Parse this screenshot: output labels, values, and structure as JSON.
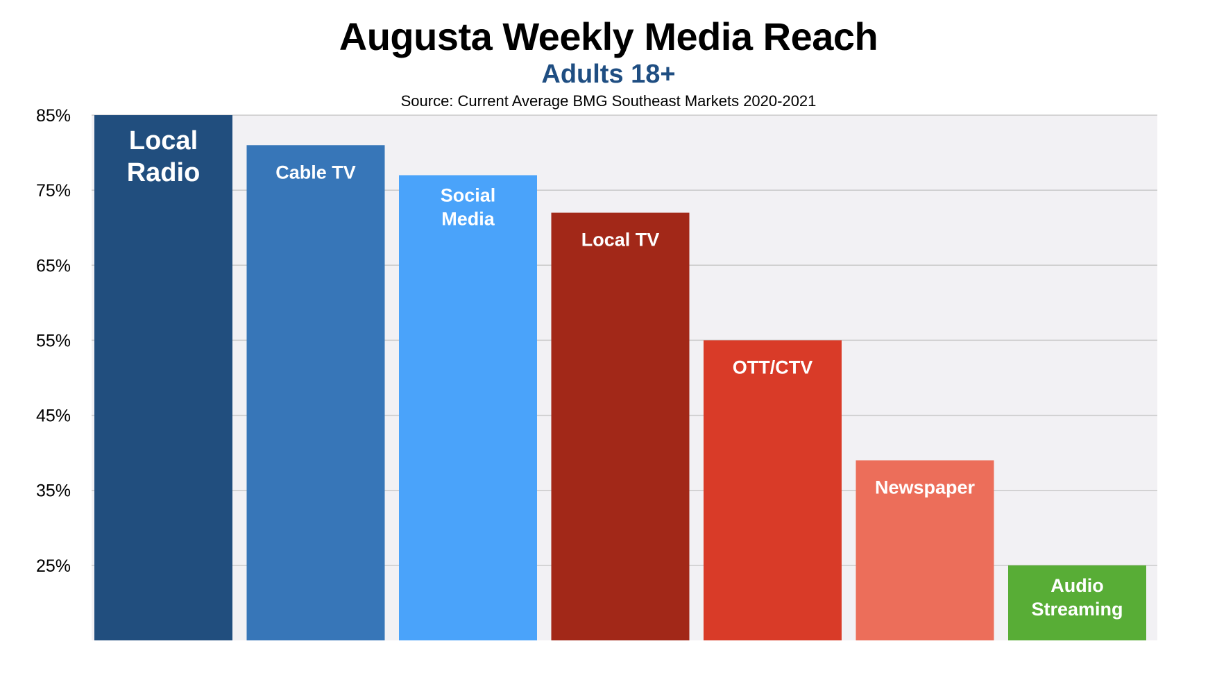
{
  "chart_data": {
    "type": "bar",
    "title": "Augusta Weekly Media Reach",
    "subtitle": "Adults 18+",
    "source": "Source: Current Average BMG Southeast Markets 2020-2021",
    "xlabel": "",
    "ylabel": "",
    "ylim": [
      15,
      85
    ],
    "y_ticks": [
      25,
      35,
      45,
      55,
      65,
      75,
      85
    ],
    "y_tick_format": "%",
    "grid": true,
    "legend": "none",
    "bars": [
      {
        "label": [
          "Local",
          "Radio"
        ],
        "value": 85,
        "color": "#214e7e"
      },
      {
        "label": [
          "Cable TV"
        ],
        "value": 81,
        "color": "#3776b8"
      },
      {
        "label": [
          "Social",
          "Media"
        ],
        "value": 77,
        "color": "#4aa3fa"
      },
      {
        "label": [
          "Local TV"
        ],
        "value": 72,
        "color": "#a22818"
      },
      {
        "label": [
          "OTT/CTV"
        ],
        "value": 55,
        "color": "#d93b28"
      },
      {
        "label": [
          "Newspaper"
        ],
        "value": 39,
        "color": "#ec6e5a"
      },
      {
        "label": [
          "Audio",
          "Streaming"
        ],
        "value": 25,
        "color": "#58ad36"
      }
    ],
    "colors": {
      "title": "#000000",
      "subtitle": "#1f4e82",
      "plot_background": "#f2f1f4",
      "gridline": "#c9c9c9"
    }
  }
}
